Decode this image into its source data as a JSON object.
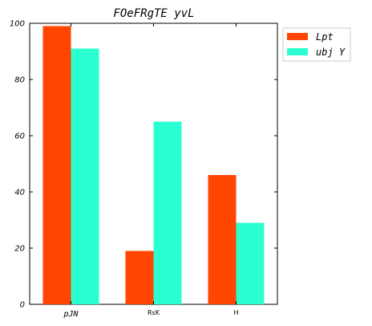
{
  "colors": {
    "series_0": "#ff4500",
    "series_1": "#2affd2"
  },
  "chart_data": {
    "type": "bar",
    "title": "FOeFRgTE yvL",
    "xlabel": "",
    "ylabel": "",
    "categories": [
      "pJN",
      "RsK",
      "H"
    ],
    "series": [
      {
        "name": "Lpt",
        "values": [
          99,
          19,
          46
        ]
      },
      {
        "name": "ubj Y",
        "values": [
          91,
          65,
          29
        ]
      }
    ],
    "ylim": [
      0,
      100
    ],
    "yticks": [
      0,
      20,
      40,
      60,
      80,
      100
    ],
    "legend_position": "top-right outside",
    "grid": false
  }
}
